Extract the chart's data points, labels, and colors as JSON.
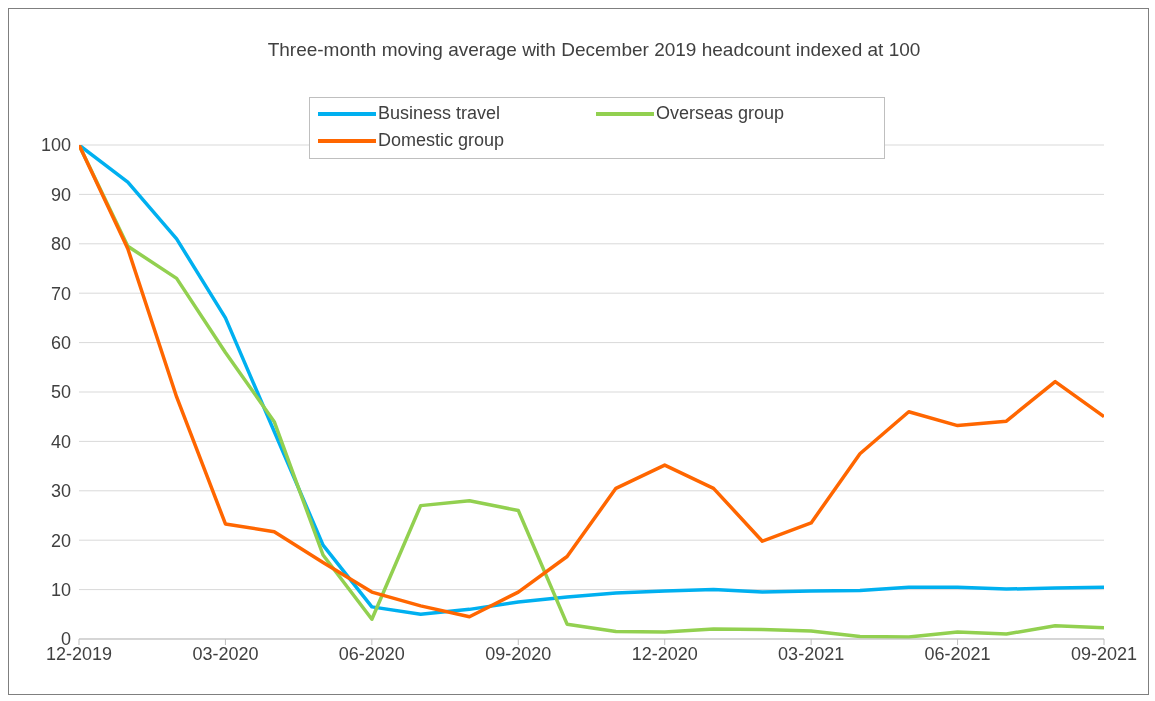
{
  "chart_data": {
    "type": "line",
    "title": "Three-month moving average with December 2019 headcount indexed at 100",
    "x": [
      "2019-12",
      "2020-01",
      "2020-02",
      "2020-03",
      "2020-04",
      "2020-05",
      "2020-06",
      "2020-07",
      "2020-08",
      "2020-09",
      "2020-10",
      "2020-11",
      "2020-12",
      "2021-01",
      "2021-02",
      "2021-03",
      "2021-04",
      "2021-05",
      "2021-06",
      "2021-07",
      "2021-08",
      "2021-09"
    ],
    "series": [
      {
        "name": "Business travel",
        "color": "#00b0f0",
        "values": [
          100,
          92.5,
          81,
          65,
          42,
          19,
          6.5,
          5,
          6,
          7.5,
          8.5,
          9.3,
          9.7,
          10,
          9.5,
          9.7,
          9.8,
          10.5,
          10.5,
          10.1,
          10.3,
          10.5
        ]
      },
      {
        "name": "Overseas group",
        "color": "#92d050",
        "values": [
          100,
          79.5,
          73,
          58,
          44,
          17,
          4,
          27,
          28,
          26,
          3,
          1.5,
          1.4,
          2,
          1.9,
          1.6,
          0.5,
          0.4,
          1.4,
          1,
          2.7,
          2.3
        ]
      },
      {
        "name": "Domestic group",
        "color": "#ff6600",
        "values": [
          100,
          79,
          49,
          23.3,
          21.7,
          15.5,
          9.5,
          6.7,
          4.5,
          9.5,
          16.7,
          30.5,
          35.2,
          30.5,
          19.8,
          23.5,
          37.5,
          46,
          43.2,
          44.1,
          52.1,
          45
        ]
      }
    ],
    "xlim": [
      "2019-12",
      "2021-09"
    ],
    "xticks": [
      {
        "value": "2019-12",
        "label": "12-2019"
      },
      {
        "value": "2020-03",
        "label": "03-2020"
      },
      {
        "value": "2020-06",
        "label": "06-2020"
      },
      {
        "value": "2020-09",
        "label": "09-2020"
      },
      {
        "value": "2020-12",
        "label": "12-2020"
      },
      {
        "value": "2021-03",
        "label": "03-2021"
      },
      {
        "value": "2021-06",
        "label": "06-2021"
      },
      {
        "value": "2021-09",
        "label": "09-2021"
      }
    ],
    "ylim": [
      0,
      100
    ],
    "yticks": [
      0,
      10,
      20,
      30,
      40,
      50,
      60,
      70,
      80,
      90,
      100
    ],
    "grid": "y",
    "legend": "top",
    "marker": "none",
    "line_style": "solid"
  }
}
